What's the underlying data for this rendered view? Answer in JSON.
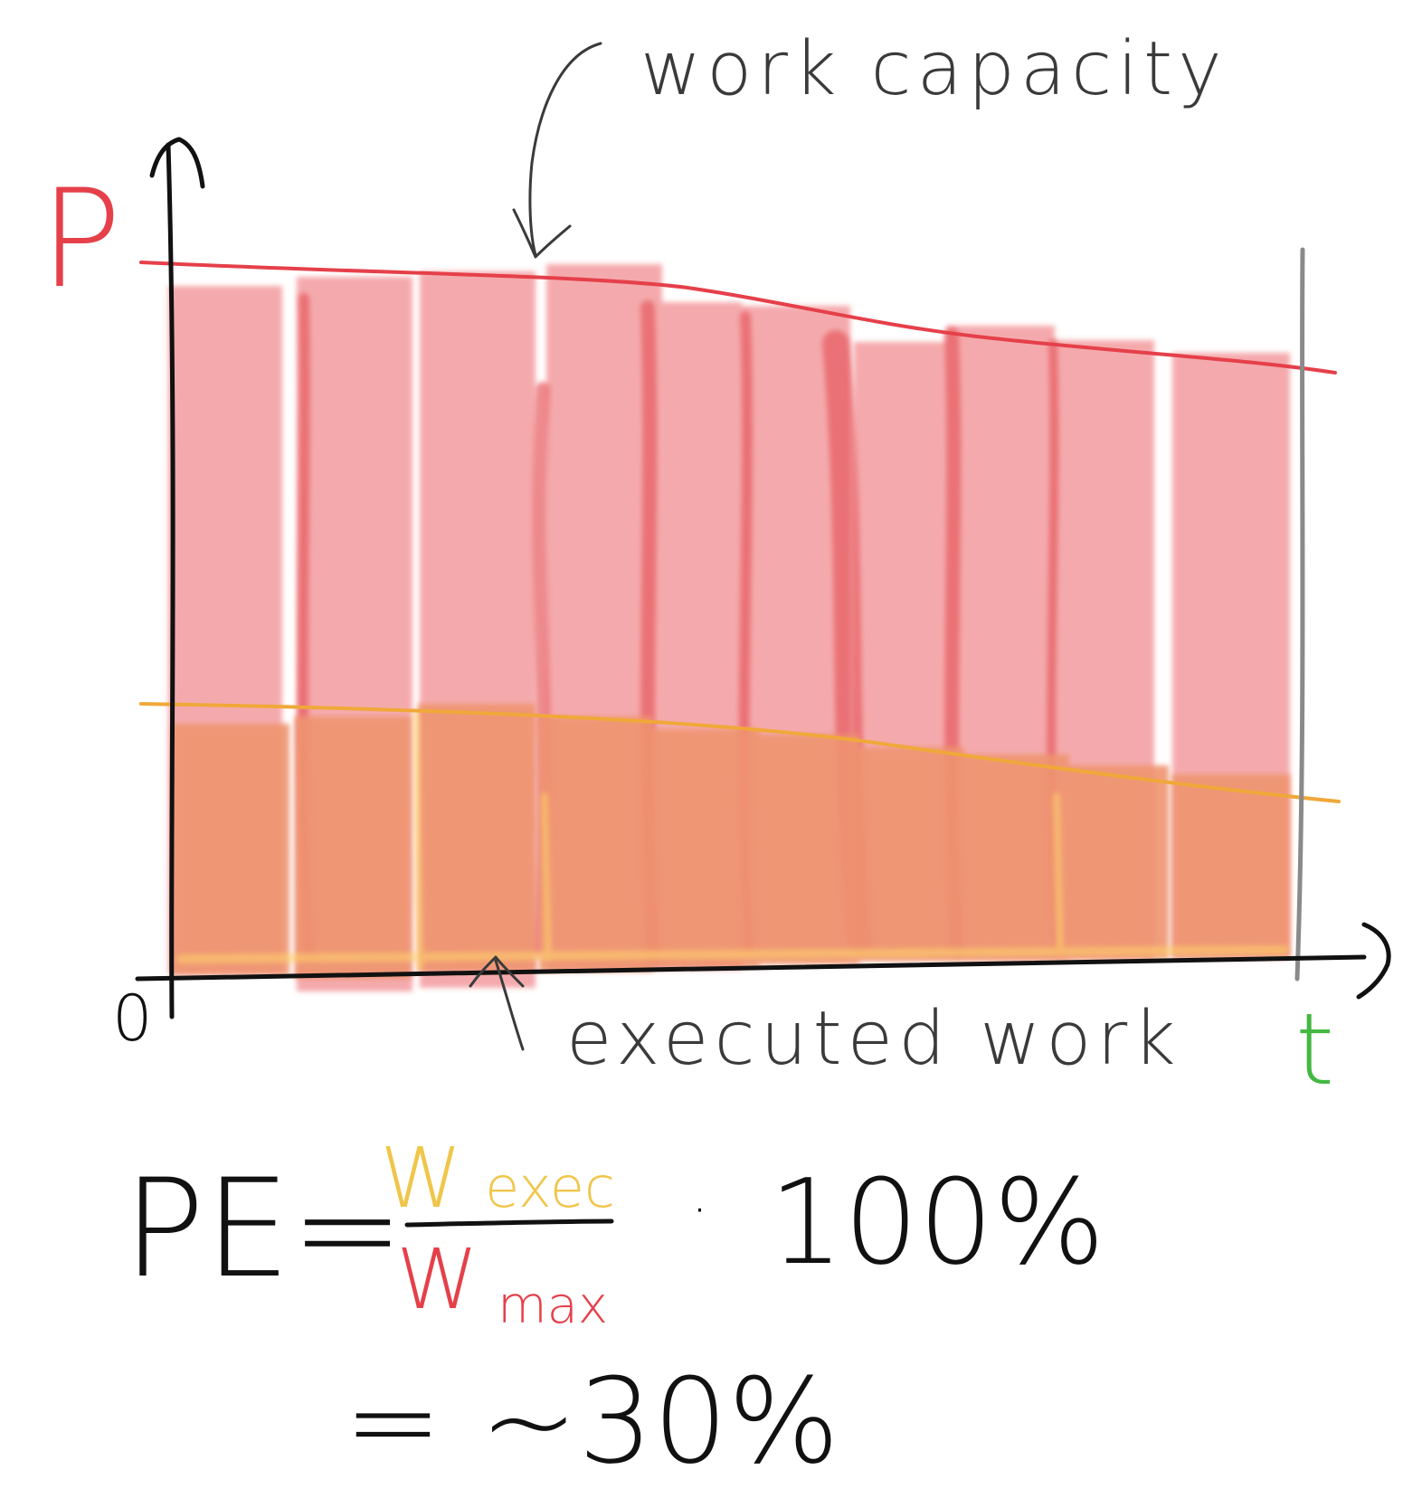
{
  "diagram": {
    "labels": {
      "y_axis": "P",
      "x_axis": "t",
      "origin": "0",
      "capacity_annotation": "work capacity",
      "executed_annotation": "executed work"
    },
    "formula": {
      "lhs": "PE=",
      "numerator_symbol": "W",
      "numerator_subscript": "exec",
      "denominator_symbol": "W",
      "denominator_subscript": "max",
      "multiplier": "·",
      "percent": "100%",
      "result": "= ~30%"
    },
    "colors": {
      "capacity": "#e5404a",
      "capacity_fill": "#f4a3a6",
      "executed": "#f0a83a",
      "executed_fill": "#ef9470",
      "axis": "#111111",
      "end_marker": "#8a8a8a",
      "t_label": "#43b843",
      "annotation": "#3a3a3a",
      "formula_numerator": "#f0c64a"
    }
  }
}
